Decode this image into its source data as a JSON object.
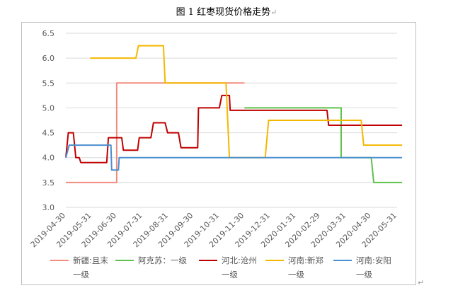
{
  "page": {
    "title": "图 1 红枣现货价格走势",
    "return_mark": "↵"
  },
  "chart_data": {
    "type": "line",
    "ylim": [
      3.0,
      6.5
    ],
    "yticks": [
      "3.0",
      "3.5",
      "4.0",
      "4.5",
      "5.0",
      "5.5",
      "6.0",
      "6.5"
    ],
    "xlabels": [
      "2019-04-30",
      "2019-05-31",
      "2019-06-30",
      "2019-07-31",
      "2019-08-31",
      "2019-09-30",
      "2019-10-31",
      "2019-11-30",
      "2019-12-31",
      "2020-01-31",
      "2020-02-29",
      "2020-03-31",
      "2020-04-30",
      "2020-05-31"
    ],
    "gridlines": true,
    "legend_position": "bottom",
    "series": [
      {
        "name": "新疆:且末一级",
        "legend_lines": [
          "新疆:且末",
          "一级"
        ],
        "color": "#F08C80",
        "points": [
          [
            "2019-04-30",
            3.5
          ],
          [
            "2019-06-30",
            3.5
          ],
          [
            "2019-06-30",
            5.5
          ],
          [
            "2019-11-30",
            5.5
          ]
        ]
      },
      {
        "name": "阿克苏：一级",
        "legend_lines": [
          "阿克苏：一级",
          ""
        ],
        "color": "#5FC24C",
        "points": [
          [
            "2019-11-30",
            5.0
          ],
          [
            "2020-03-25",
            5.0
          ],
          [
            "2020-03-25",
            4.0
          ],
          [
            "2020-04-30",
            4.0
          ],
          [
            "2020-05-03",
            3.5
          ],
          [
            "2020-06-06",
            3.5
          ]
        ]
      },
      {
        "name": "河北:沧州一级",
        "legend_lines": [
          "河北:沧州",
          "一级"
        ],
        "color": "#C00000",
        "points": [
          [
            "2019-04-30",
            4.0
          ],
          [
            "2019-05-03",
            4.5
          ],
          [
            "2019-05-09",
            4.5
          ],
          [
            "2019-05-12",
            4.0
          ],
          [
            "2019-05-16",
            4.0
          ],
          [
            "2019-05-18",
            3.9
          ],
          [
            "2019-06-18",
            3.9
          ],
          [
            "2019-06-20",
            4.4
          ],
          [
            "2019-07-06",
            4.4
          ],
          [
            "2019-07-08",
            4.15
          ],
          [
            "2019-07-25",
            4.15
          ],
          [
            "2019-07-27",
            4.4
          ],
          [
            "2019-08-10",
            4.4
          ],
          [
            "2019-08-13",
            4.7
          ],
          [
            "2019-08-27",
            4.7
          ],
          [
            "2019-08-30",
            4.5
          ],
          [
            "2019-09-12",
            4.5
          ],
          [
            "2019-09-15",
            4.2
          ],
          [
            "2019-10-05",
            4.2
          ],
          [
            "2019-10-06",
            5.0
          ],
          [
            "2019-10-31",
            5.0
          ],
          [
            "2019-11-03",
            5.25
          ],
          [
            "2019-11-12",
            5.25
          ],
          [
            "2019-11-13",
            4.95
          ],
          [
            "2020-03-08",
            4.95
          ],
          [
            "2020-03-10",
            4.65
          ],
          [
            "2020-06-06",
            4.65
          ]
        ]
      },
      {
        "name": "河南:新郑一级",
        "legend_lines": [
          "河南:新郑",
          "一级"
        ],
        "color": "#F5B800",
        "points": [
          [
            "2019-05-29",
            6.0
          ],
          [
            "2019-07-23",
            6.0
          ],
          [
            "2019-07-26",
            6.25
          ],
          [
            "2019-08-25",
            6.25
          ],
          [
            "2019-08-27",
            5.5
          ],
          [
            "2019-11-08",
            5.5
          ],
          [
            "2019-11-12",
            4.0
          ],
          [
            "2019-12-25",
            4.0
          ],
          [
            "2019-12-29",
            4.75
          ],
          [
            "2020-04-18",
            4.75
          ],
          [
            "2020-04-21",
            4.25
          ],
          [
            "2020-06-06",
            4.25
          ]
        ]
      },
      {
        "name": "河南:安阳一级",
        "legend_lines": [
          "河南:安阳",
          "一级"
        ],
        "color": "#4A8FCF",
        "points": [
          [
            "2019-04-30",
            4.0
          ],
          [
            "2019-05-04",
            4.25
          ],
          [
            "2019-06-23",
            4.25
          ],
          [
            "2019-06-24",
            3.75
          ],
          [
            "2019-07-02",
            3.75
          ],
          [
            "2019-07-03",
            4.0
          ],
          [
            "2020-06-06",
            4.0
          ]
        ]
      }
    ]
  }
}
